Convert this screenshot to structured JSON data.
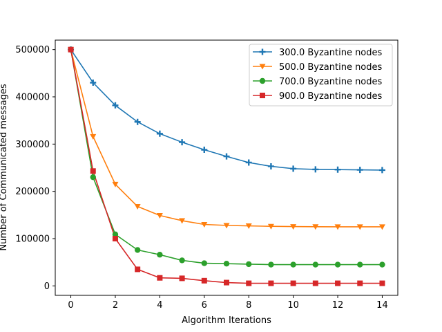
{
  "chart_data": {
    "type": "line",
    "title": "",
    "xlabel": "Algorithm Iterations",
    "ylabel": "Number of Communicated messages",
    "xlim": [
      -0.7,
      14.7
    ],
    "ylim": [
      -20000,
      520000
    ],
    "xticks": [
      0,
      2,
      4,
      6,
      8,
      10,
      12,
      14
    ],
    "yticks": [
      0,
      100000,
      200000,
      300000,
      400000,
      500000
    ],
    "grid": false,
    "legend_position": "upper right",
    "x": [
      0,
      1,
      2,
      3,
      4,
      5,
      6,
      7,
      8,
      9,
      10,
      11,
      12,
      13,
      14
    ],
    "series": [
      {
        "name": "300.0 Byzantine nodes",
        "color": "#1f77b4",
        "marker": "plus",
        "values": [
          500000,
          430000,
          382000,
          347000,
          322000,
          304000,
          288000,
          274000,
          261000,
          253000,
          248000,
          246500,
          246000,
          245500,
          245000
        ]
      },
      {
        "name": "500.0 Byzantine nodes",
        "color": "#ff7f0e",
        "marker": "triangle-down",
        "values": [
          500000,
          316000,
          215000,
          168000,
          149000,
          138000,
          130000,
          128000,
          127000,
          126000,
          125500,
          125200,
          125000,
          125000,
          125000
        ]
      },
      {
        "name": "700.0 Byzantine nodes",
        "color": "#2ca02c",
        "marker": "circle",
        "values": [
          500000,
          230000,
          109000,
          76000,
          66000,
          54000,
          48000,
          47000,
          46000,
          45000,
          45000,
          45000,
          45000,
          45000,
          45000
        ]
      },
      {
        "name": "900.0 Byzantine nodes",
        "color": "#d62728",
        "marker": "square",
        "values": [
          500000,
          243000,
          100000,
          35000,
          17000,
          16000,
          11000,
          7000,
          5500,
          5500,
          5500,
          5500,
          5500,
          5500,
          5500
        ]
      }
    ]
  }
}
